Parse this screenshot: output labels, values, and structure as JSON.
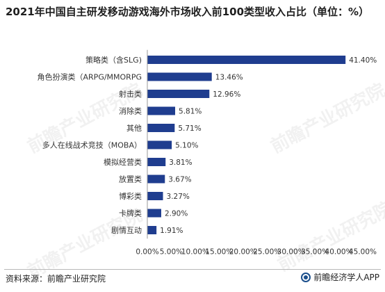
{
  "page": {
    "title": "2021年中国自主研发移动游戏海外市场收入前100类型收入占比（单位：%）",
    "source": "资料来源：前瞻产业研究院",
    "brand": "前瞻经济学人APP",
    "watermark": "前瞻产业研究院"
  },
  "colors": {
    "bar": "#1f3d8f",
    "axis": "#999999"
  },
  "chart_data": {
    "type": "bar",
    "orientation": "horizontal",
    "title": "2021年中国自主研发移动游戏海外市场收入前100类型收入占比（单位：%）",
    "categories": [
      "策略类（含SLG)",
      "角色扮演类（ARPG/MMORPG",
      "射击类",
      "消除类",
      "其他",
      "多人在线战术竞技（MOBA）",
      "模拟经营类",
      "放置类",
      "博彩类",
      "卡牌类",
      "剧情互动"
    ],
    "values": [
      41.4,
      13.46,
      12.96,
      5.81,
      5.71,
      5.1,
      3.81,
      3.67,
      3.27,
      2.9,
      1.91
    ],
    "value_labels": [
      "41.40%",
      "13.46%",
      "12.96%",
      "5.81%",
      "5.71%",
      "5.10%",
      "3.81%",
      "3.67%",
      "3.27%",
      "2.90%",
      "1.91%"
    ],
    "xlim": [
      0,
      45
    ],
    "ticks": [
      0,
      5,
      10,
      15,
      20,
      25,
      30,
      35,
      40,
      45
    ],
    "tick_labels": [
      "0.00%",
      "5.00%",
      "10.00%",
      "15.00%",
      "20.00%",
      "25.00%",
      "30.00%",
      "35.00%",
      "40.00%",
      "45.00%"
    ],
    "grid": false,
    "legend": false
  }
}
